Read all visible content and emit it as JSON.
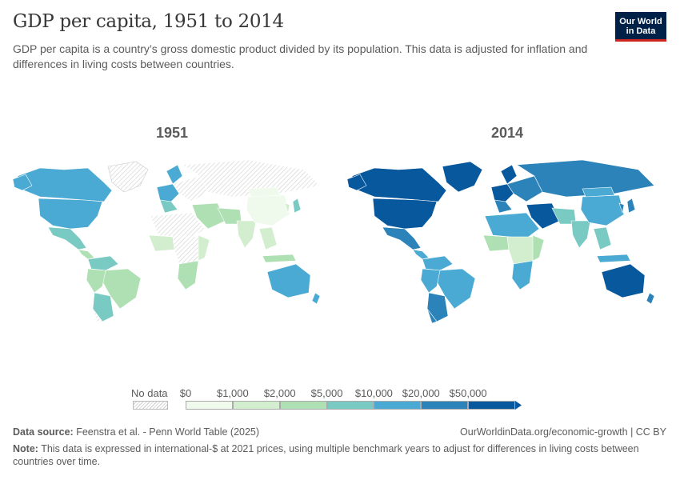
{
  "header": {
    "title": "GDP per capita, 1951 to 2014",
    "subtitle": "GDP per capita is a country’s gross domestic product divided by its population. This data is adjusted for inflation and differences in living costs between countries.",
    "logo_line1": "Our World",
    "logo_line2": "in Data"
  },
  "maps": [
    {
      "label": "1951"
    },
    {
      "label": "2014"
    }
  ],
  "legend": {
    "no_data_label": "No data",
    "bins": [
      "$0",
      "$1,000",
      "$2,000",
      "$5,000",
      "$10,000",
      "$20,000",
      "$50,000"
    ],
    "colors": [
      "#eff9ec",
      "#d2eece",
      "#afe0b3",
      "#79cac3",
      "#4baad3",
      "#2b83ba",
      "#08589e"
    ],
    "no_data_pattern": "hatched-gray"
  },
  "footer": {
    "source_label": "Data source:",
    "source_text": "Feenstra et al. - Penn World Table (2025)",
    "url": "OurWorldinData.org/economic-growth | CC BY",
    "note_label": "Note:",
    "note_text": "This data is expressed in international-$ at 2021 prices, using multiple benchmark years to adjust for differences in living costs between countries over time."
  }
}
